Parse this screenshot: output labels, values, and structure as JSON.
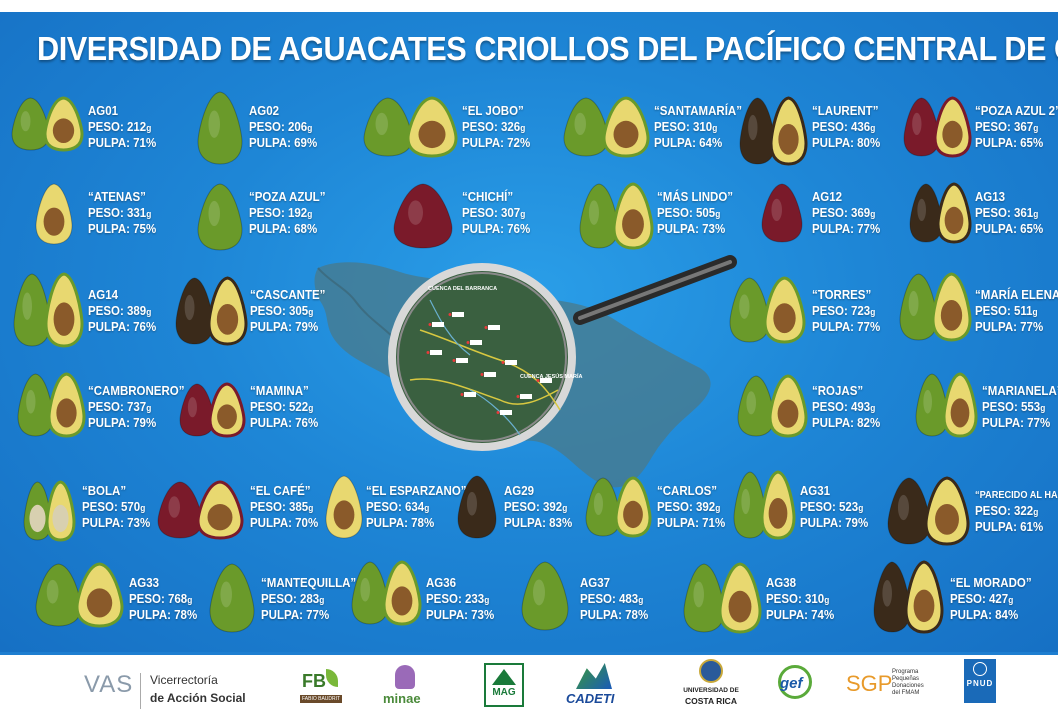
{
  "title": "DIVERSIDAD DE AGUACATES CRIOLLOS DEL PACÍFICO CENTRAL DE COSTA RICA",
  "labels": {
    "peso": "PESO:",
    "pulpa": "PULPA:",
    "unit": "g"
  },
  "colors": {
    "background": "#1e86d6",
    "text": "#ffffff",
    "skin_green": "#6a9a2a",
    "skin_dark": "#3a2a1a",
    "flesh": "#e8d870",
    "seed": "#8a5a2a"
  },
  "map": {
    "labels": [
      "CUENCA DEL BARRANCA",
      "CUENCA JESÚS MARÍA"
    ],
    "icon": "magnifying-glass-icon"
  },
  "avocados": [
    {
      "name": "AG01",
      "peso": "212",
      "pulpa": "71%"
    },
    {
      "name": "AG02",
      "peso": "206",
      "pulpa": "69%"
    },
    {
      "name": "“EL JOBO”",
      "peso": "326",
      "pulpa": "72%"
    },
    {
      "name": "“SANTAMARÍA”",
      "peso": "310",
      "pulpa": "64%"
    },
    {
      "name": "“LAURENT”",
      "peso": "436",
      "pulpa": "80%"
    },
    {
      "name": "“POZA AZUL 2”",
      "peso": "367",
      "pulpa": "65%"
    },
    {
      "name": "“ATENAS”",
      "peso": "331",
      "pulpa": "75%"
    },
    {
      "name": "“POZA AZUL”",
      "peso": "192",
      "pulpa": "68%"
    },
    {
      "name": "“CHICHÍ”",
      "peso": "307",
      "pulpa": "76%"
    },
    {
      "name": "“MÁS LINDO”",
      "peso": "505",
      "pulpa": "73%"
    },
    {
      "name": "AG12",
      "peso": "369",
      "pulpa": "77%"
    },
    {
      "name": "AG13",
      "peso": "361",
      "pulpa": "65%"
    },
    {
      "name": "AG14",
      "peso": "389",
      "pulpa": "76%"
    },
    {
      "name": "“CASCANTE”",
      "peso": "305",
      "pulpa": "79%"
    },
    {
      "name": "“TORRES”",
      "peso": "723",
      "pulpa": "77%"
    },
    {
      "name": "“MARÍA ELENA”",
      "peso": "511",
      "pulpa": "77%"
    },
    {
      "name": "“CAMBRONERO”",
      "peso": "737",
      "pulpa": "79%"
    },
    {
      "name": "“MAMINA”",
      "peso": "522",
      "pulpa": "76%"
    },
    {
      "name": "“ROJAS”",
      "peso": "493",
      "pulpa": "82%"
    },
    {
      "name": "“MARIANELA”",
      "peso": "553",
      "pulpa": "77%"
    },
    {
      "name": "“BOLA”",
      "peso": "570",
      "pulpa": "73%"
    },
    {
      "name": "“EL CAFÉ”",
      "peso": "385",
      "pulpa": "70%"
    },
    {
      "name": "“EL ESPARZANO”",
      "peso": "634",
      "pulpa": "78%"
    },
    {
      "name": "AG29",
      "peso": "392",
      "pulpa": "83%"
    },
    {
      "name": "“CARLOS”",
      "peso": "392",
      "pulpa": "71%"
    },
    {
      "name": "AG31",
      "peso": "523",
      "pulpa": "79%"
    },
    {
      "name": "“PARECIDO AL HASS”",
      "peso": "322",
      "pulpa": "61%"
    },
    {
      "name": "AG33",
      "peso": "768",
      "pulpa": "78%"
    },
    {
      "name": "“MANTEQUILLA”",
      "peso": "283",
      "pulpa": "77%"
    },
    {
      "name": "AG36",
      "peso": "233",
      "pulpa": "73%"
    },
    {
      "name": "AG37",
      "peso": "483",
      "pulpa": "78%"
    },
    {
      "name": "AG38",
      "peso": "310",
      "pulpa": "74%"
    },
    {
      "name": "“EL MORADO”",
      "peso": "427",
      "pulpa": "84%"
    }
  ],
  "footer": {
    "vas": {
      "abbr": "VAS",
      "line1": "Vicerrectoría",
      "line2": "de Acción Social"
    },
    "fb": {
      "abbr": "FB",
      "sub": "FABIO BAUDRIT"
    },
    "minae": {
      "name": "minae"
    },
    "mag": {
      "name": "MAG"
    },
    "cadeti": {
      "name": "CADETI"
    },
    "ucr": {
      "line1": "UNIVERSIDAD DE",
      "line2": "COSTA RICA"
    },
    "gef": {
      "name": "gef"
    },
    "sgp": {
      "name": "SGP",
      "line1": "Programa",
      "line2": "Pequeñas",
      "line3": "Donaciones",
      "line4": "del FMAM"
    },
    "pnud": {
      "name": "PNUD"
    }
  }
}
